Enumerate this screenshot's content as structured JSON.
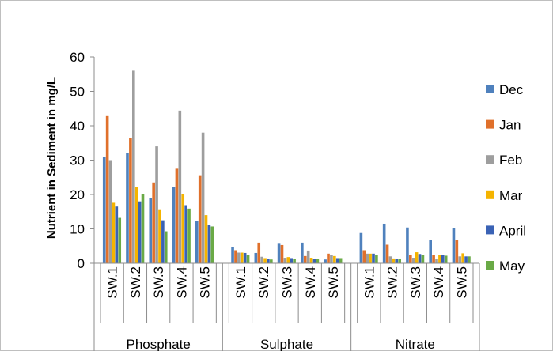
{
  "chart_data": {
    "type": "bar",
    "title": "",
    "ylabel": "Nutrient in Sediment in mg/L",
    "xlabel": "",
    "ylim": [
      0,
      60
    ],
    "yticks": [
      0,
      10,
      20,
      30,
      40,
      50,
      60
    ],
    "grid": false,
    "legend_position": "right",
    "groups": [
      {
        "label": "Phosphate",
        "sites": [
          "SW.1",
          "SW.2",
          "SW.3",
          "SW.4",
          "SW.5"
        ]
      },
      {
        "label": "Sulphate",
        "sites": [
          "SW.1",
          "SW.2",
          "SW.3",
          "SW.4",
          "SW.5"
        ]
      },
      {
        "label": "Nitrate",
        "sites": [
          "SW.1",
          "SW.2",
          "SW.3",
          "SW.4",
          "SW.5"
        ]
      }
    ],
    "series": [
      {
        "name": "Dec",
        "color": "#4F81BD",
        "values": [
          31,
          32,
          19,
          22.3,
          12.2,
          4.6,
          3,
          5.9,
          6,
          1.1,
          8.8,
          11.5,
          10.4,
          6.7,
          10.3
        ]
      },
      {
        "name": "Jan",
        "color": "#E0702B",
        "values": [
          42.8,
          36.5,
          23.5,
          27.5,
          25.6,
          3.8,
          6,
          5.3,
          2.1,
          2.8,
          3.8,
          5.4,
          2.5,
          2.4,
          6.7
        ]
      },
      {
        "name": "Feb",
        "color": "#9E9E9E",
        "values": [
          30,
          56,
          34,
          44.4,
          38,
          3.1,
          1.9,
          1.6,
          3.7,
          2.3,
          2.8,
          2,
          1.6,
          1.3,
          2
        ]
      },
      {
        "name": "Mar",
        "color": "#F5B400",
        "values": [
          17.6,
          22.2,
          15.7,
          20,
          14,
          3.1,
          1.5,
          1.8,
          1.6,
          2.1,
          2.8,
          1.4,
          3.2,
          2.3,
          2.9
        ]
      },
      {
        "name": "April",
        "color": "#3A62B5",
        "values": [
          16.5,
          18,
          12.5,
          16.9,
          11.1,
          3,
          1.2,
          1.5,
          1.3,
          1.5,
          2.8,
          1.2,
          2.7,
          2.4,
          2
        ]
      },
      {
        "name": "May",
        "color": "#6AAA46",
        "values": [
          13.2,
          20,
          9.3,
          15.9,
          10.7,
          2.4,
          1.1,
          1.2,
          1.2,
          1.5,
          2.4,
          1.2,
          2.4,
          2.2,
          2
        ]
      }
    ]
  }
}
